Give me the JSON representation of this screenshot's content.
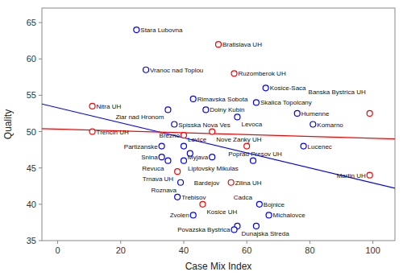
{
  "chart_data": {
    "type": "scatter",
    "xlabel": "Case Mix Index",
    "ylabel": "Quality",
    "labels": [
      "Stara Lubovna",
      "Vranoc nad Toplou",
      "Bratislava UH",
      "Ruzomberok UH",
      "Kosice-Saca",
      "Rimavska Sobota",
      "Skalica Topolcany",
      "Dolny Kubin",
      "Nitra UH",
      "Ziar nad Hronom",
      "Humenne",
      "Banska Bystrica UH",
      "Spisska Nova Ves",
      "Levoca",
      "Komarno",
      "Trencin UH",
      "Nove Zanky UH",
      "Brezno",
      "Partizanske",
      "Liptovsky Mikulas",
      "Presov UH",
      "Lucenec",
      "Snina",
      "Bardejov",
      "Poprad",
      "Revuca",
      "Levice",
      "Myjava",
      "Trnava UH",
      "Zilina UH",
      "Martin UH",
      "Roznava",
      "Trebisov",
      "Kosice UH",
      "Bojnice",
      "Zvolen",
      "Michalovce",
      "Dunajska Streda",
      "Cadca",
      "Povazska Bystrica"
    ],
    "x": [
      25,
      28,
      51,
      56,
      66,
      43,
      63,
      47,
      11,
      35,
      76,
      99,
      37,
      57,
      81,
      11,
      49,
      40,
      33,
      40,
      60,
      78,
      33,
      42,
      62,
      35,
      40,
      49,
      38,
      55,
      99,
      39,
      38,
      46,
      64,
      43,
      67,
      57,
      63,
      56
    ],
    "values": [
      64,
      58.5,
      62,
      58,
      56,
      54.5,
      54,
      53,
      53.5,
      53,
      52.5,
      52.5,
      51,
      52,
      51,
      50,
      50,
      49.5,
      48,
      48,
      48,
      48,
      46.5,
      47,
      46,
      46,
      46,
      46.5,
      44.5,
      43,
      44,
      43,
      41,
      40,
      40,
      38.5,
      38.5,
      37,
      37,
      36.5
    ],
    "colors": [
      "blue",
      "blue",
      "red",
      "red",
      "blue",
      "blue",
      "blue",
      "blue",
      "red",
      "blue",
      "blue",
      "red",
      "blue",
      "blue",
      "blue",
      "red",
      "red",
      "red",
      "blue",
      "blue",
      "red",
      "blue",
      "blue",
      "blue",
      "blue",
      "blue",
      "blue",
      "blue",
      "red",
      "red",
      "red",
      "blue",
      "blue",
      "red",
      "blue",
      "blue",
      "blue",
      "blue",
      "blue",
      "blue"
    ],
    "series": [
      {
        "type": "line",
        "color": "blue",
        "x": [
          -5,
          107
        ],
        "values": [
          53.8,
          42.2
        ]
      },
      {
        "type": "line",
        "color": "red",
        "x": [
          -5,
          107
        ],
        "values": [
          50.4,
          49.0
        ]
      }
    ],
    "xlim": [
      -5,
      107
    ],
    "ylim": [
      35,
      67
    ],
    "xticks": [
      0,
      20,
      40,
      60,
      80,
      100
    ],
    "yticks": [
      35,
      40,
      45,
      50,
      55,
      60,
      65
    ]
  }
}
